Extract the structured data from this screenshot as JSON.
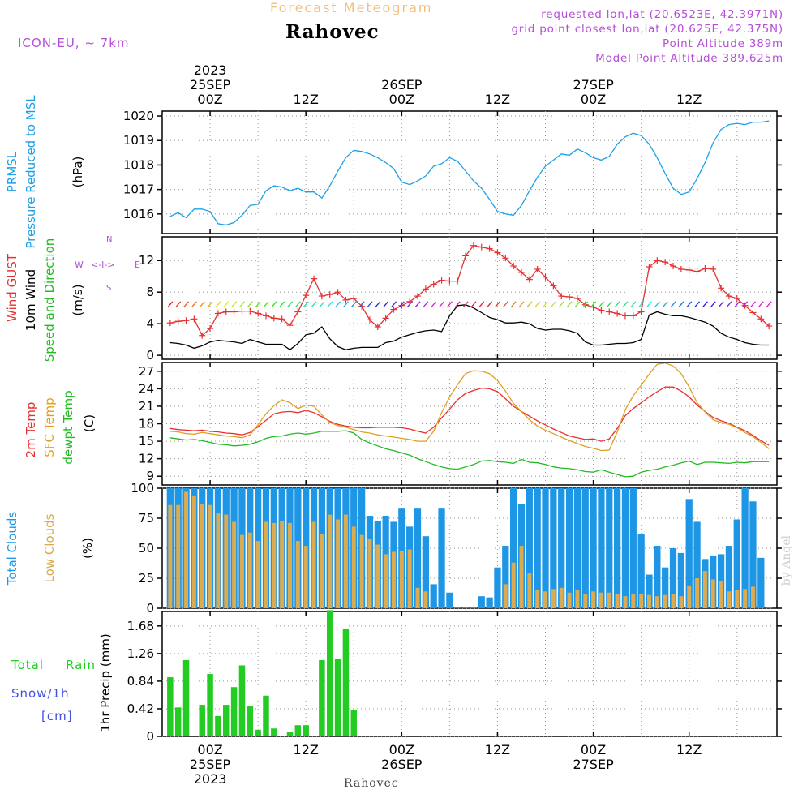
{
  "header": {
    "forecast_title": "Forecast Meteogram",
    "location": "Rahovec",
    "model": "ICON-EU, ~ 7km",
    "requested": "requested lon,lat (20.6523E, 42.3971N)",
    "grid_point": "grid point closest lon,lat (20.625E, 42.375N)",
    "point_altitude": "Point Altitude 389m",
    "model_altitude": "Model Point Altitude 389.625m",
    "bottom_label": "Rahovec",
    "credit": "by Angel"
  },
  "colors": {
    "pressure": "#1ea0e6",
    "gust": "#e83030",
    "wind": "#000000",
    "temp2m": "#e83030",
    "sfc": "#e0a020",
    "dewpt": "#22bb22",
    "total_clouds": "#1e96e6",
    "low_clouds": "#dcaa50",
    "rain": "#22cc22",
    "snow": "#4050e0",
    "purple": "#b44fd6"
  },
  "time_axis": {
    "top_year": "2023",
    "bottom_year": "2023",
    "ticks": [
      {
        "hour": 0,
        "label": "00Z",
        "date": "25SEP"
      },
      {
        "hour": 12,
        "label": "12Z",
        "date": ""
      },
      {
        "hour": 24,
        "label": "00Z",
        "date": "26SEP"
      },
      {
        "hour": 36,
        "label": "12Z",
        "date": ""
      },
      {
        "hour": 48,
        "label": "00Z",
        "date": "27SEP"
      },
      {
        "hour": 60,
        "label": "12Z",
        "date": ""
      }
    ],
    "start_hour": -6,
    "end_hour": 71
  },
  "chart_data": [
    {
      "type": "line",
      "panel": "pressure",
      "labels": [
        "PRMSL",
        "Pressure Reduced to MSL",
        "(hPa)"
      ],
      "ylim": [
        1015.2,
        1020.2
      ],
      "yticks": [
        1016,
        1017,
        1018,
        1019,
        1020
      ],
      "x": [
        -5,
        -4,
        -3,
        -2,
        -1,
        0,
        1,
        2,
        3,
        4,
        5,
        6,
        7,
        8,
        9,
        10,
        11,
        12,
        13,
        14,
        15,
        16,
        17,
        18,
        19,
        20,
        21,
        22,
        23,
        24,
        25,
        26,
        27,
        28,
        29,
        30,
        31,
        32,
        33,
        34,
        35,
        36,
        37,
        38,
        39,
        40,
        41,
        42,
        43,
        44,
        45,
        46,
        47,
        48,
        49,
        50,
        51,
        52,
        53,
        54,
        55,
        56,
        57,
        58,
        59,
        60,
        61,
        62,
        63,
        64,
        65,
        66,
        67,
        68,
        69,
        70
      ],
      "series": [
        {
          "name": "PRMSL",
          "values": [
            1015.9,
            1016.05,
            1015.85,
            1016.2,
            1016.2,
            1016.1,
            1015.6,
            1015.55,
            1015.65,
            1015.95,
            1016.35,
            1016.4,
            1016.95,
            1017.15,
            1017.1,
            1016.95,
            1017.05,
            1016.9,
            1016.9,
            1016.65,
            1017.15,
            1017.75,
            1018.3,
            1018.6,
            1018.55,
            1018.45,
            1018.3,
            1018.1,
            1017.85,
            1017.3,
            1017.2,
            1017.35,
            1017.55,
            1017.95,
            1018.05,
            1018.3,
            1018.15,
            1017.75,
            1017.35,
            1017.05,
            1016.6,
            1016.1,
            1016.0,
            1015.95,
            1016.35,
            1016.95,
            1017.5,
            1017.95,
            1018.2,
            1018.45,
            1018.4,
            1018.65,
            1018.5,
            1018.3,
            1018.2,
            1018.35,
            1018.85,
            1019.15,
            1019.3,
            1019.2,
            1018.85,
            1018.3,
            1017.65,
            1017.05,
            1016.8,
            1016.9,
            1017.45,
            1018.1,
            1018.9,
            1019.45,
            1019.65,
            1019.7,
            1019.65,
            1019.75,
            1019.75,
            1019.8
          ]
        }
      ]
    },
    {
      "type": "line",
      "panel": "wind",
      "labels": [
        "Wind GUST",
        "10m Wind",
        "Speed and Direction",
        "(m/s)"
      ],
      "compass": {
        "n": "N",
        "s": "S",
        "w": "W",
        "e": "E",
        "arrow": "<-I->"
      },
      "ylim": [
        -0.5,
        15
      ],
      "yticks": [
        0,
        4,
        8,
        12
      ],
      "x": [
        -5,
        -4,
        -3,
        -2,
        -1,
        0,
        1,
        2,
        3,
        4,
        5,
        6,
        7,
        8,
        9,
        10,
        11,
        12,
        13,
        14,
        15,
        16,
        17,
        18,
        19,
        20,
        21,
        22,
        23,
        24,
        25,
        26,
        27,
        28,
        29,
        30,
        31,
        32,
        33,
        34,
        35,
        36,
        37,
        38,
        39,
        40,
        41,
        42,
        43,
        44,
        45,
        46,
        47,
        48,
        49,
        50,
        51,
        52,
        53,
        54,
        55,
        56,
        57,
        58,
        59,
        60,
        61,
        62,
        63,
        64,
        65,
        66,
        67,
        68,
        69,
        70
      ],
      "series": [
        {
          "name": "Wind GUST",
          "values": [
            4.1,
            4.3,
            4.4,
            4.6,
            2.5,
            3.4,
            5.3,
            5.5,
            5.5,
            5.6,
            5.6,
            5.3,
            5.0,
            4.7,
            4.6,
            3.8,
            5.5,
            7.6,
            9.7,
            7.5,
            7.7,
            8.0,
            7.0,
            7.2,
            6.2,
            4.5,
            3.6,
            4.7,
            5.8,
            6.3,
            6.8,
            7.5,
            8.4,
            9.0,
            9.5,
            9.4,
            9.4,
            12.6,
            13.9,
            13.7,
            13.5,
            13.0,
            12.3,
            11.3,
            10.5,
            9.6,
            10.9,
            9.9,
            8.8,
            7.5,
            7.4,
            7.2,
            6.4,
            6.1,
            5.7,
            5.5,
            5.3,
            5.0,
            5.0,
            5.5,
            11.2,
            12.0,
            11.8,
            11.3,
            10.9,
            10.8,
            10.6,
            11.0,
            10.9,
            8.5,
            7.5,
            7.2,
            6.3,
            5.4,
            4.6,
            3.7
          ]
        },
        {
          "name": "10m Wind",
          "values": [
            1.6,
            1.5,
            1.3,
            0.9,
            1.2,
            1.7,
            1.9,
            1.8,
            1.7,
            1.5,
            2.0,
            1.7,
            1.4,
            1.4,
            1.4,
            0.7,
            1.5,
            2.6,
            2.8,
            3.6,
            2.1,
            1.1,
            0.7,
            0.9,
            1.0,
            1.0,
            1.0,
            1.6,
            1.8,
            2.3,
            2.6,
            2.9,
            3.1,
            3.2,
            3.0,
            5.0,
            6.3,
            6.4,
            6.0,
            5.4,
            4.8,
            4.5,
            4.1,
            4.1,
            4.2,
            4.0,
            3.4,
            3.2,
            3.3,
            3.3,
            3.1,
            2.8,
            1.7,
            1.3,
            1.3,
            1.4,
            1.5,
            1.5,
            1.6,
            2.0,
            5.1,
            5.5,
            5.2,
            5.0,
            5.0,
            4.8,
            4.5,
            4.2,
            3.7,
            2.8,
            2.3,
            2.0,
            1.6,
            1.4,
            1.3,
            1.3
          ]
        }
      ]
    },
    {
      "type": "line",
      "panel": "temperature",
      "labels": [
        "2m Temp",
        "SFC Temp",
        "dewpt Temp",
        "(C)"
      ],
      "ylim": [
        7.5,
        28.5
      ],
      "yticks": [
        9,
        12,
        15,
        18,
        21,
        24,
        27
      ],
      "x": [
        -5,
        -4,
        -3,
        -2,
        -1,
        0,
        1,
        2,
        3,
        4,
        5,
        6,
        7,
        8,
        9,
        10,
        11,
        12,
        13,
        14,
        15,
        16,
        17,
        18,
        19,
        20,
        21,
        22,
        23,
        24,
        25,
        26,
        27,
        28,
        29,
        30,
        31,
        32,
        33,
        34,
        35,
        36,
        37,
        38,
        39,
        40,
        41,
        42,
        43,
        44,
        45,
        46,
        47,
        48,
        49,
        50,
        51,
        52,
        53,
        54,
        55,
        56,
        57,
        58,
        59,
        60,
        61,
        62,
        63,
        64,
        65,
        66,
        67,
        68,
        69,
        70
      ],
      "series": [
        {
          "name": "2m Temp",
          "values": [
            17.2,
            17.0,
            16.9,
            16.8,
            16.9,
            16.7,
            16.6,
            16.4,
            16.3,
            16.1,
            16.5,
            17.5,
            18.6,
            19.7,
            20.0,
            20.1,
            19.9,
            20.3,
            19.9,
            19.2,
            18.4,
            17.9,
            17.6,
            17.4,
            17.3,
            17.3,
            17.4,
            17.4,
            17.4,
            17.3,
            17.1,
            16.7,
            16.4,
            17.4,
            19.0,
            20.5,
            22.1,
            23.2,
            23.7,
            24.1,
            24.0,
            23.5,
            22.3,
            21.0,
            20.1,
            19.3,
            18.5,
            17.8,
            17.1,
            16.5,
            15.9,
            15.6,
            15.3,
            15.4,
            15.0,
            15.4,
            17.2,
            19.4,
            20.6,
            21.6,
            22.6,
            23.5,
            24.3,
            24.3,
            23.6,
            22.6,
            21.2,
            20.1,
            19.1,
            18.5,
            18.1,
            17.4,
            16.8,
            16.0,
            15.1,
            14.3
          ]
        },
        {
          "name": "SFC Temp",
          "values": [
            16.7,
            16.6,
            16.3,
            16.2,
            16.5,
            16.3,
            16.1,
            15.9,
            15.8,
            15.6,
            16.1,
            17.8,
            19.7,
            21.1,
            22.1,
            21.6,
            20.6,
            21.2,
            21.0,
            19.5,
            18.2,
            17.7,
            17.4,
            17.0,
            16.6,
            16.4,
            16.1,
            15.9,
            15.7,
            15.5,
            15.3,
            15.0,
            15.0,
            16.7,
            19.9,
            22.6,
            24.7,
            26.6,
            27.1,
            27.0,
            26.6,
            25.4,
            23.6,
            21.5,
            20.1,
            18.7,
            17.6,
            16.9,
            16.3,
            15.7,
            15.1,
            14.6,
            14.1,
            13.8,
            13.4,
            13.5,
            16.6,
            20.4,
            22.8,
            24.6,
            26.5,
            28.2,
            28.4,
            27.9,
            26.6,
            24.3,
            21.6,
            20.0,
            18.7,
            18.2,
            17.9,
            17.3,
            16.5,
            15.8,
            14.8,
            13.7
          ]
        },
        {
          "name": "dewpt Temp",
          "values": [
            15.6,
            15.4,
            15.2,
            15.3,
            15.1,
            14.8,
            14.5,
            14.4,
            14.2,
            14.3,
            14.5,
            14.9,
            15.5,
            15.8,
            15.9,
            16.2,
            16.4,
            16.2,
            16.4,
            16.7,
            16.7,
            16.7,
            16.8,
            16.4,
            15.3,
            14.7,
            14.2,
            13.7,
            13.4,
            13.0,
            12.6,
            12.0,
            11.5,
            11.0,
            10.6,
            10.3,
            10.2,
            10.6,
            11.0,
            11.6,
            11.7,
            11.5,
            11.4,
            11.2,
            11.9,
            11.4,
            11.3,
            11.0,
            10.6,
            10.4,
            10.3,
            10.1,
            9.8,
            9.7,
            10.1,
            9.7,
            9.3,
            8.9,
            9.0,
            9.7,
            10.0,
            10.2,
            10.6,
            10.9,
            11.3,
            11.6,
            11.0,
            11.4,
            11.4,
            11.3,
            11.2,
            11.4,
            11.3,
            11.5,
            11.5,
            11.5
          ]
        }
      ]
    },
    {
      "type": "bar",
      "panel": "clouds",
      "labels": [
        "Total Clouds",
        "Low Clouds",
        "(%)"
      ],
      "ylim": [
        0,
        100
      ],
      "yticks": [
        0,
        25,
        50,
        75,
        100
      ],
      "x": [
        -5,
        -4,
        -3,
        -2,
        -1,
        0,
        1,
        2,
        3,
        4,
        5,
        6,
        7,
        8,
        9,
        10,
        11,
        12,
        13,
        14,
        15,
        16,
        17,
        18,
        19,
        20,
        21,
        22,
        23,
        24,
        25,
        26,
        27,
        28,
        29,
        30,
        31,
        32,
        33,
        34,
        35,
        36,
        37,
        38,
        39,
        40,
        41,
        42,
        43,
        44,
        45,
        46,
        47,
        48,
        49,
        50,
        51,
        52,
        53,
        54,
        55,
        56,
        57,
        58,
        59,
        60,
        61,
        62,
        63,
        64,
        65,
        66,
        67,
        68,
        69,
        70
      ],
      "series": [
        {
          "name": "Total Clouds",
          "values": [
            100,
            100,
            100,
            100,
            100,
            100,
            100,
            100,
            100,
            100,
            100,
            100,
            100,
            100,
            100,
            100,
            100,
            100,
            100,
            100,
            100,
            100,
            100,
            100,
            100,
            77,
            73,
            77,
            72,
            83,
            68,
            83,
            60,
            20,
            83,
            13,
            0,
            0,
            0,
            10,
            9,
            34,
            52,
            100,
            87,
            100,
            100,
            100,
            100,
            100,
            100,
            100,
            100,
            100,
            100,
            100,
            100,
            100,
            100,
            62,
            28,
            52,
            34,
            50,
            46,
            91,
            72,
            41,
            44,
            45,
            52,
            74,
            100,
            89,
            42,
            0
          ]
        },
        {
          "name": "Low Clouds",
          "values": [
            86,
            86,
            97,
            94,
            87,
            86,
            79,
            78,
            72,
            61,
            63,
            56,
            72,
            71,
            73,
            71,
            56,
            52,
            72,
            62,
            78,
            74,
            78,
            68,
            61,
            58,
            53,
            45,
            47,
            48,
            49,
            17,
            14,
            0,
            0,
            0,
            0,
            0,
            0,
            0,
            0,
            0,
            20,
            38,
            52,
            29,
            15,
            14,
            16,
            17,
            13,
            15,
            12,
            14,
            13,
            13,
            12,
            10,
            12,
            12,
            11,
            10,
            11,
            12,
            10,
            19,
            25,
            31,
            24,
            23,
            14,
            15,
            16,
            18,
            0,
            0
          ]
        }
      ]
    },
    {
      "type": "bar",
      "panel": "precip",
      "labels": [
        "Total",
        "Rain",
        "Snow/1h",
        "[cm]",
        "1hr Precip (mm)"
      ],
      "ylim": [
        0,
        1.9
      ],
      "yticks": [
        0,
        0.42,
        0.84,
        1.26,
        1.68
      ],
      "ytick_labels": [
        "0",
        "0.42",
        "0.84",
        "1.26",
        "1.68"
      ],
      "x": [
        -5,
        -4,
        -3,
        -2,
        -1,
        0,
        1,
        2,
        3,
        4,
        5,
        6,
        7,
        8,
        9,
        10,
        11,
        12,
        13,
        14,
        15,
        16,
        17,
        18,
        19,
        20,
        21,
        22,
        23,
        24
      ],
      "series": [
        {
          "name": "Total Rain",
          "values": [
            0.9,
            0.44,
            1.16,
            0,
            0.48,
            0.95,
            0.31,
            0.48,
            0.75,
            1.08,
            0.46,
            0.1,
            0.62,
            0.12,
            0,
            0.07,
            0.17,
            0.17,
            0,
            1.16,
            1.92,
            1.18,
            1.63,
            0.4,
            0,
            0,
            0,
            0,
            0,
            0
          ]
        }
      ]
    }
  ]
}
